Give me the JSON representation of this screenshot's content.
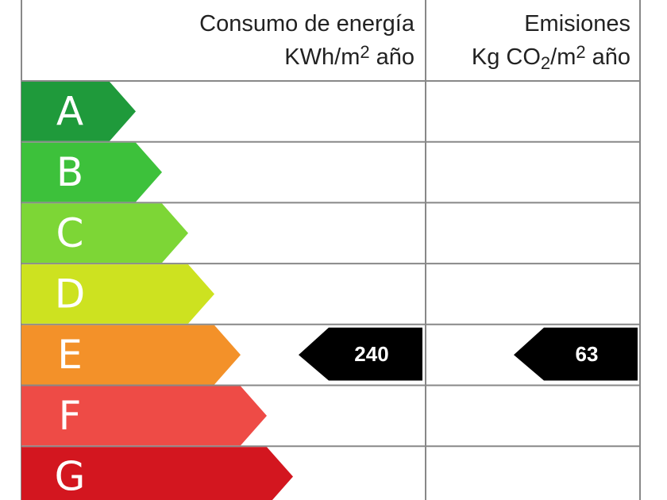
{
  "header": {
    "consumo": {
      "title": "Consumo de energía",
      "unit": [
        "KWh/m",
        "2",
        "año"
      ]
    },
    "emisiones": {
      "title": "Emisiones",
      "unit": [
        "Kg CO",
        "2",
        "/m",
        "2",
        "año"
      ]
    }
  },
  "rows": [
    {
      "letter": "A",
      "color": "#1f9a3b"
    },
    {
      "letter": "B",
      "color": "#3dc13b"
    },
    {
      "letter": "C",
      "color": "#7dd636"
    },
    {
      "letter": "D",
      "color": "#cde220"
    },
    {
      "letter": "E",
      "color": "#f39129",
      "consumo": 240,
      "emisiones": 63
    },
    {
      "letter": "F",
      "color": "#ee4b46"
    },
    {
      "letter": "G",
      "color": "#d3161f"
    }
  ]
}
